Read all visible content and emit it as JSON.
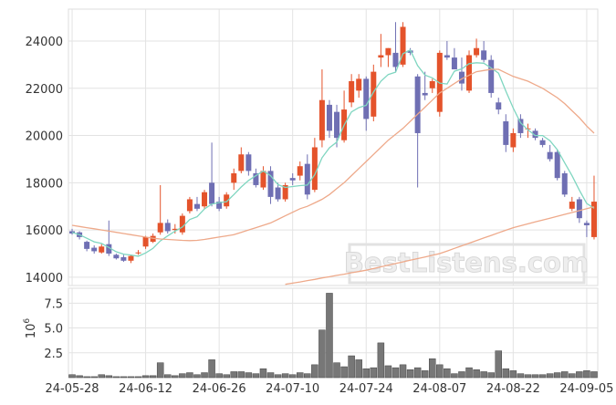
{
  "chart_data": {
    "type": "candlestick",
    "categories": [
      "24-05-28",
      null,
      null,
      null,
      null,
      null,
      null,
      null,
      null,
      null,
      "24-06-12",
      null,
      null,
      null,
      null,
      null,
      null,
      null,
      null,
      null,
      "24-06-26",
      null,
      null,
      null,
      null,
      null,
      null,
      null,
      null,
      null,
      "24-07-10",
      null,
      null,
      null,
      null,
      null,
      null,
      null,
      null,
      null,
      "24-07-24",
      null,
      null,
      null,
      null,
      null,
      null,
      null,
      null,
      null,
      "24-08-07",
      null,
      null,
      null,
      null,
      null,
      null,
      null,
      null,
      null,
      "24-08-22",
      null,
      null,
      null,
      null,
      null,
      null,
      null,
      null,
      null,
      "24-09-05",
      null
    ],
    "open": [
      15950,
      15900,
      15500,
      15250,
      15050,
      15400,
      14950,
      14850,
      14700,
      15050,
      15300,
      15500,
      15900,
      16300,
      16000,
      15900,
      16800,
      17100,
      17000,
      18000,
      17200,
      17000,
      18000,
      18500,
      19200,
      18400,
      17800,
      18500,
      17800,
      17300,
      18200,
      18300,
      18800,
      17700,
      19800,
      21300,
      21000,
      19800,
      21400,
      21900,
      22400,
      20800,
      23300,
      23400,
      23500,
      23000,
      23600,
      22500,
      21800,
      22000,
      21000,
      23400,
      23300,
      22700,
      21900,
      23400,
      23600,
      23200,
      21400,
      20600,
      19500,
      20700,
      20300,
      20200,
      19800,
      19300,
      19300,
      18400,
      16900,
      17300,
      16300,
      15700
    ],
    "high": [
      16050,
      15950,
      15550,
      15350,
      15400,
      16400,
      15000,
      14950,
      14950,
      15150,
      15750,
      15850,
      17900,
      16450,
      16250,
      16700,
      17400,
      17400,
      17700,
      19700,
      17400,
      17600,
      18600,
      19500,
      19300,
      18600,
      18700,
      18700,
      18000,
      18000,
      18400,
      18900,
      19200,
      19900,
      22800,
      21500,
      21300,
      21900,
      22600,
      22600,
      22500,
      23000,
      24300,
      23700,
      24800,
      24800,
      23700,
      22600,
      22700,
      22400,
      23600,
      24000,
      23700,
      23300,
      23600,
      24100,
      24000,
      23400,
      21600,
      20900,
      20300,
      20900,
      20500,
      20300,
      19900,
      19600,
      19400,
      18500,
      17400,
      17400,
      16400,
      18300
    ],
    "low": [
      15800,
      15600,
      15100,
      15000,
      15000,
      14900,
      14750,
      14650,
      14600,
      14950,
      15200,
      15450,
      15800,
      15850,
      15850,
      15800,
      16700,
      16800,
      16900,
      17000,
      16800,
      16900,
      17700,
      18400,
      18300,
      17800,
      17700,
      17100,
      17200,
      17200,
      17900,
      18100,
      17300,
      17600,
      19500,
      19900,
      19500,
      19700,
      21200,
      21600,
      20200,
      20600,
      22900,
      22900,
      22700,
      22900,
      23400,
      17800,
      21500,
      21800,
      20800,
      23200,
      22800,
      21900,
      21800,
      23300,
      23100,
      21600,
      20900,
      19300,
      19300,
      19900,
      19900,
      19800,
      19500,
      18900,
      18100,
      17400,
      16800,
      16300,
      15700,
      15600
    ],
    "close": [
      15850,
      15700,
      15200,
      15100,
      15300,
      15000,
      14800,
      14700,
      14900,
      15050,
      15700,
      15750,
      16300,
      15950,
      16050,
      16600,
      17300,
      16900,
      17600,
      17100,
      16900,
      17500,
      18400,
      19200,
      18500,
      17900,
      18500,
      17400,
      17300,
      17900,
      18100,
      18700,
      17500,
      19500,
      21500,
      20200,
      19900,
      21100,
      22300,
      22400,
      20700,
      22700,
      23400,
      23700,
      22900,
      24600,
      23500,
      20100,
      21700,
      22300,
      23500,
      23300,
      22800,
      22200,
      23400,
      23700,
      23200,
      21800,
      21100,
      19600,
      20100,
      20100,
      20300,
      19900,
      19600,
      19000,
      18200,
      17500,
      17200,
      16500,
      16200,
      17200
    ],
    "up_color": "#e4532b",
    "down_color": "#6f6fb3",
    "ylim": [
      13650,
      25350
    ],
    "yticks": [
      14000,
      16000,
      18000,
      20000,
      22000,
      24000
    ],
    "grid": true,
    "series": [
      {
        "color": "#7fd6c0",
        "values": [
          15900,
          15800,
          15650,
          15500,
          15430,
          15260,
          15080,
          14980,
          14940,
          14890,
          15030,
          15220,
          15540,
          15750,
          15950,
          16130,
          16440,
          16560,
          16890,
          17100,
          17160,
          17200,
          17500,
          17820,
          18100,
          18300,
          18500,
          18300,
          17920,
          17800,
          17840,
          17880,
          17900,
          18340,
          19060,
          19480,
          19720,
          20440,
          21000,
          21180,
          21280,
          21840,
          22300,
          22580,
          22680,
          23460,
          23620,
          22960,
          22560,
          22440,
          22220,
          22180,
          22720,
          22820,
          23040,
          23080,
          23060,
          22860,
          22640,
          21880,
          21160,
          20540,
          20240,
          20000,
          20000,
          19780,
          19400,
          18840,
          18300,
          17680,
          17120,
          16920
        ]
      },
      {
        "color": "#eea98a",
        "values": [
          16200,
          16150,
          16100,
          16050,
          16000,
          15950,
          15900,
          15850,
          15800,
          15750,
          15700,
          15650,
          15620,
          15600,
          15580,
          15560,
          15550,
          15560,
          15600,
          15650,
          15700,
          15750,
          15800,
          15900,
          16000,
          16100,
          16200,
          16300,
          16450,
          16600,
          16750,
          16900,
          17000,
          17150,
          17300,
          17500,
          17750,
          18000,
          18300,
          18600,
          18900,
          19200,
          19500,
          19800,
          20050,
          20300,
          20600,
          20900,
          21200,
          21500,
          21800,
          22000,
          22200,
          22400,
          22550,
          22700,
          22750,
          22800,
          22800,
          22650,
          22500,
          22400,
          22300,
          22150,
          22000,
          21800,
          21600,
          21350,
          21050,
          20750,
          20400,
          20100
        ]
      },
      {
        "color": "#eea98a",
        "values": [
          null,
          null,
          null,
          null,
          null,
          null,
          null,
          null,
          null,
          null,
          null,
          null,
          null,
          null,
          null,
          null,
          null,
          null,
          null,
          null,
          null,
          null,
          null,
          null,
          null,
          null,
          null,
          null,
          null,
          13700,
          13750,
          13800,
          13860,
          13910,
          13970,
          14020,
          14080,
          14130,
          14190,
          14240,
          14300,
          14370,
          14440,
          14510,
          14580,
          14650,
          14720,
          14790,
          14860,
          14930,
          15000,
          15110,
          15220,
          15330,
          15440,
          15550,
          15660,
          15770,
          15880,
          15990,
          16100,
          16180,
          16260,
          16340,
          16420,
          16500,
          16580,
          16660,
          16740,
          16820,
          16900,
          16980
        ]
      }
    ],
    "volume": {
      "color": "#777777",
      "values": [
        0.3,
        0.2,
        0.1,
        0.1,
        0.3,
        0.2,
        0.1,
        0.1,
        0.1,
        0.1,
        0.2,
        0.2,
        1.5,
        0.3,
        0.2,
        0.4,
        0.5,
        0.3,
        0.5,
        1.8,
        0.4,
        0.3,
        0.6,
        0.6,
        0.5,
        0.4,
        0.9,
        0.5,
        0.3,
        0.4,
        0.3,
        0.5,
        0.4,
        1.3,
        4.8,
        8.5,
        1.5,
        1.1,
        2.2,
        1.8,
        0.9,
        1.0,
        3.5,
        1.2,
        1.0,
        1.3,
        0.8,
        1.0,
        0.7,
        1.9,
        1.3,
        0.9,
        0.4,
        0.6,
        1.0,
        0.8,
        0.6,
        0.5,
        2.7,
        0.9,
        0.7,
        0.4,
        0.3,
        0.3,
        0.3,
        0.4,
        0.5,
        0.6,
        0.4,
        0.6,
        0.7,
        0.6
      ],
      "ylim": [
        0,
        9
      ],
      "yticks": [
        2.5,
        {
          "value": 5,
          "label": "5.0"
        },
        7.5
      ],
      "label_base": "10",
      "label_exponent": "6"
    },
    "watermark": "BestListens.com"
  }
}
